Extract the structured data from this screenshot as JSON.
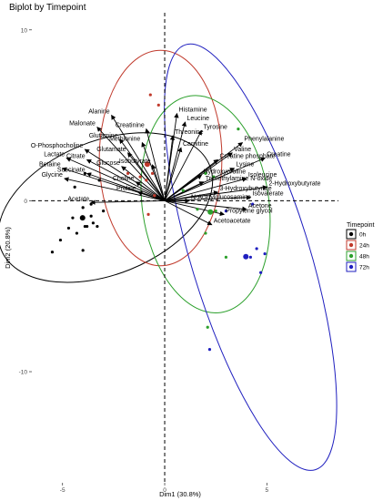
{
  "chart_data": {
    "type": "scatter",
    "title": "Biplot by Timepoint",
    "xlabel": "Dim1 (30.8%)",
    "ylabel": "Dim2 (20.8%)",
    "xlim": [
      -6.5,
      8.5
    ],
    "ylim": [
      -16.5,
      11
    ],
    "x_ticks": [
      -5,
      0,
      5
    ],
    "y_ticks": [
      -10,
      0,
      10
    ],
    "grid": false,
    "legend": {
      "title": "Timepoint",
      "placement": "right",
      "entries": [
        {
          "label": "0h",
          "color": "#000000"
        },
        {
          "label": "24h",
          "color": "#c0392b"
        },
        {
          "label": "48h",
          "color": "#2ca02c"
        },
        {
          "label": "72h",
          "color": "#1f1fbf"
        }
      ]
    },
    "series": [
      {
        "name": "0h",
        "color": "#000000",
        "points": [
          [
            -3.9,
            1.6
          ],
          [
            -3.2,
            1.2
          ],
          [
            -4.4,
            0.8
          ],
          [
            -4.0,
            -0.4
          ],
          [
            -3.6,
            -0.2
          ],
          [
            -3.0,
            -0.6
          ],
          [
            -4.5,
            -1.0
          ],
          [
            -3.8,
            -1.5
          ],
          [
            -3.3,
            -1.5
          ],
          [
            -5.1,
            -2.3
          ],
          [
            -4.3,
            -1.9
          ],
          [
            -4.0,
            -2.9
          ],
          [
            -4.7,
            -1.6
          ],
          [
            -5.5,
            -3.0
          ],
          [
            -3.6,
            -0.9
          ],
          [
            -3.9,
            -1.5
          ],
          [
            -3.5,
            -1.3
          ]
        ],
        "ellipse": {
          "cx": -2.9,
          "cy": -0.4,
          "rx": 5.5,
          "ry": 3.9,
          "angle": 22
        }
      },
      {
        "name": "24h",
        "color": "#c0392b",
        "points": [
          [
            -0.7,
            6.2
          ],
          [
            -0.3,
            5.6
          ],
          [
            -0.9,
            1.2
          ],
          [
            -0.8,
            -0.8
          ],
          [
            -0.6,
            1.6
          ],
          [
            -0.5,
            0.3
          ],
          [
            -1.8,
            1.6
          ],
          [
            -1.2,
            1.4
          ]
        ],
        "ellipse": {
          "cx": -0.2,
          "cy": 2.5,
          "rx": 3.0,
          "ry": 6.3,
          "angle": 0
        }
      },
      {
        "name": "48h",
        "color": "#2ca02c",
        "points": [
          [
            0.9,
            0.6
          ],
          [
            2.0,
            -1.9
          ],
          [
            3.0,
            -3.3
          ],
          [
            1.6,
            -0.5
          ],
          [
            2.0,
            1.6
          ],
          [
            2.4,
            1.4
          ],
          [
            3.6,
            4.2
          ],
          [
            2.1,
            -7.4
          ],
          [
            2.5,
            -0.6
          ]
        ],
        "ellipse": {
          "cx": 2.0,
          "cy": -0.2,
          "rx": 3.1,
          "ry": 6.4,
          "angle": 8
        }
      },
      {
        "name": "72h",
        "color": "#1f1fbf",
        "points": [
          [
            4.5,
            -2.8
          ],
          [
            4.9,
            -3.1
          ],
          [
            4.7,
            -4.2
          ],
          [
            4.2,
            -3.3
          ],
          [
            2.2,
            -8.7
          ],
          [
            3.0,
            -0.6
          ],
          [
            4.3,
            -0.2
          ]
        ],
        "ellipse": {
          "cx": 4.2,
          "cy": -3.3,
          "rx": 2.9,
          "ry": 13.0,
          "angle": 17
        }
      }
    ],
    "variables": [
      {
        "name": "Histamine",
        "x": 0.6,
        "y": 5.1
      },
      {
        "name": "Leucine",
        "x": 1.0,
        "y": 4.6
      },
      {
        "name": "Creatinine",
        "x": -0.9,
        "y": 4.2
      },
      {
        "name": "Threonine",
        "x": 0.4,
        "y": 3.8
      },
      {
        "name": "Carnitine",
        "x": 0.8,
        "y": 3.1
      },
      {
        "name": "Tyrosine",
        "x": 1.8,
        "y": 4.1
      },
      {
        "name": "Phenylalanine",
        "x": 3.8,
        "y": 3.4
      },
      {
        "name": "Valine",
        "x": 3.3,
        "y": 2.8
      },
      {
        "name": "Creatine",
        "x": 4.9,
        "y": 2.5
      },
      {
        "name": "Creatine phosphate",
        "x": 2.6,
        "y": 2.4
      },
      {
        "name": "Lysine",
        "x": 3.4,
        "y": 1.9
      },
      {
        "name": "Hydroxyproline",
        "x": 1.8,
        "y": 1.5
      },
      {
        "name": "Isoleucine",
        "x": 4.0,
        "y": 1.3
      },
      {
        "name": "2-Hydroxybutyrate",
        "x": 5.0,
        "y": 0.8
      },
      {
        "name": "Trimethylamine N-oxide",
        "x": 1.9,
        "y": 1.1
      },
      {
        "name": "3-Hydroxybutyrate",
        "x": 2.6,
        "y": 0.5
      },
      {
        "name": "Isovalerate",
        "x": 4.2,
        "y": 0.2
      },
      {
        "name": "N-Acetylglucosamine",
        "x": 1.2,
        "y": 0.0
      },
      {
        "name": "Acetone",
        "x": 4.0,
        "y": -0.5
      },
      {
        "name": "Propylene glycol",
        "x": 2.9,
        "y": -0.8
      },
      {
        "name": "Acetoacetate",
        "x": 2.3,
        "y": -1.4
      },
      {
        "name": "Alanine",
        "x": -2.6,
        "y": 5.0
      },
      {
        "name": "Malonate",
        "x": -3.3,
        "y": 4.3
      },
      {
        "name": "Glutamine",
        "x": -2.2,
        "y": 3.6
      },
      {
        "name": "Methionine",
        "x": -1.1,
        "y": 3.4
      },
      {
        "name": "Glutamate",
        "x": -1.8,
        "y": 2.8
      },
      {
        "name": "O-Phosphocholine",
        "x": -3.9,
        "y": 3.0
      },
      {
        "name": "Lactate",
        "x": -4.8,
        "y": 2.5
      },
      {
        "name": "Citrate",
        "x": -3.8,
        "y": 2.4
      },
      {
        "name": "Glucose",
        "x": -2.1,
        "y": 2.0
      },
      {
        "name": "Isobutyrate",
        "x": -0.6,
        "y": 2.1
      },
      {
        "name": "Betaine",
        "x": -5.0,
        "y": 1.9
      },
      {
        "name": "Succinate",
        "x": -3.8,
        "y": 1.6
      },
      {
        "name": "Glycine",
        "x": -4.9,
        "y": 1.3
      },
      {
        "name": "Choline",
        "x": -1.4,
        "y": 1.1
      },
      {
        "name": "Proline",
        "x": -1.3,
        "y": 0.5
      },
      {
        "name": "Acetate",
        "x": -3.6,
        "y": -0.1
      }
    ]
  }
}
